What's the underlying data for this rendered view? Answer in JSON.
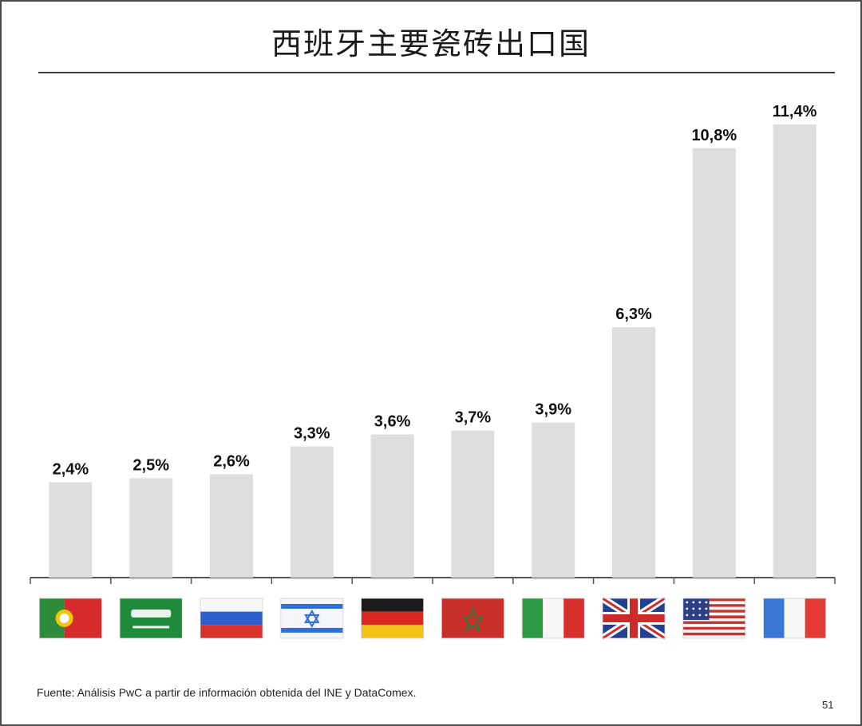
{
  "page": {
    "title": "西班牙主要瓷砖出口国",
    "source": "Fuente: Análisis PwC a partir de información obtenida del INE y DataComex.",
    "page_number": "51"
  },
  "chart_data": {
    "type": "bar",
    "title": "西班牙主要瓷砖出口国",
    "xlabel": "",
    "ylabel": "",
    "ylim": [
      0,
      12
    ],
    "grid": false,
    "bar_color": "#dedede",
    "label_color": "#111111",
    "categories": [
      "portugal-flag",
      "saudi-arabia-flag",
      "russia-flag",
      "israel-flag",
      "germany-flag",
      "morocco-flag",
      "italy-flag",
      "united-kingdom-flag",
      "united-states-flag",
      "france-flag"
    ],
    "values": [
      2.4,
      2.5,
      2.6,
      3.3,
      3.6,
      3.7,
      3.9,
      6.3,
      10.8,
      11.4
    ],
    "data_labels": [
      "2,4%",
      "2,5%",
      "2,6%",
      "3,3%",
      "3,6%",
      "3,7%",
      "3,9%",
      "6,3%",
      "10,8%",
      "11,4%"
    ]
  }
}
